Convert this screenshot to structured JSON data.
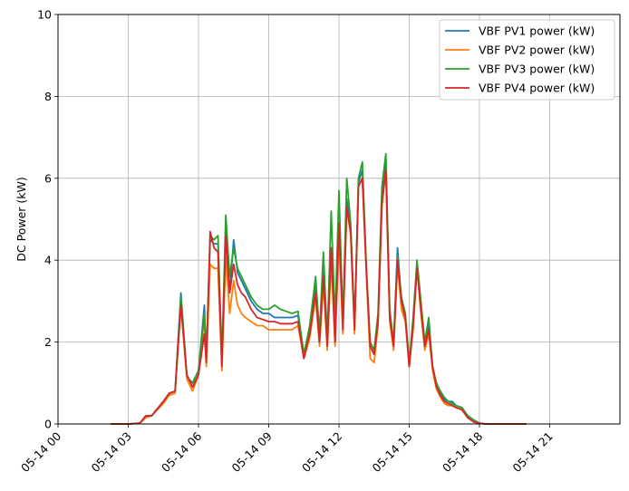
{
  "chart_data": {
    "type": "line",
    "ylabel": "DC Power (kW)",
    "xlabel": "",
    "ylim": [
      0,
      10
    ],
    "yticks": [
      0,
      2,
      4,
      6,
      8,
      10
    ],
    "xlim": [
      "05-14 00:00",
      "05-14 24:00"
    ],
    "xticks": [
      "05-14 00",
      "05-14 03",
      "05-14 06",
      "05-14 09",
      "05-14 12",
      "05-14 15",
      "05-14 18",
      "05-14 21"
    ],
    "grid": true,
    "legend_position": "top-right",
    "x": [
      "05-14 02:15",
      "05-14 03:00",
      "05-14 03:30",
      "05-14 03:45",
      "05-14 04:00",
      "05-14 04:30",
      "05-14 04:45",
      "05-14 05:00",
      "05-14 05:15",
      "05-14 05:30",
      "05-14 05:35",
      "05-14 05:45",
      "05-14 06:00",
      "05-14 06:15",
      "05-14 06:20",
      "05-14 06:30",
      "05-14 06:40",
      "05-14 06:50",
      "05-14 07:00",
      "05-14 07:10",
      "05-14 07:20",
      "05-14 07:30",
      "05-14 07:40",
      "05-14 07:50",
      "05-14 08:00",
      "05-14 08:15",
      "05-14 08:30",
      "05-14 08:45",
      "05-14 09:00",
      "05-14 09:15",
      "05-14 09:30",
      "05-14 09:45",
      "05-14 10:00",
      "05-14 10:15",
      "05-14 10:30",
      "05-14 10:45",
      "05-14 11:00",
      "05-14 11:10",
      "05-14 11:20",
      "05-14 11:30",
      "05-14 11:40",
      "05-14 11:50",
      "05-14 12:00",
      "05-14 12:10",
      "05-14 12:20",
      "05-14 12:30",
      "05-14 12:40",
      "05-14 12:50",
      "05-14 13:00",
      "05-14 13:10",
      "05-14 13:20",
      "05-14 13:30",
      "05-14 13:40",
      "05-14 13:50",
      "05-14 14:00",
      "05-14 14:10",
      "05-14 14:20",
      "05-14 14:30",
      "05-14 14:40",
      "05-14 14:50",
      "05-14 15:00",
      "05-14 15:10",
      "05-14 15:20",
      "05-14 15:30",
      "05-14 15:40",
      "05-14 15:50",
      "05-14 16:00",
      "05-14 16:10",
      "05-14 16:20",
      "05-14 16:30",
      "05-14 16:40",
      "05-14 16:50",
      "05-14 17:00",
      "05-14 17:15",
      "05-14 17:30",
      "05-14 17:45",
      "05-14 18:00",
      "05-14 18:15",
      "05-14 18:30",
      "05-14 18:45",
      "05-14 19:00",
      "05-14 19:15",
      "05-14 19:30",
      "05-14 20:00"
    ],
    "series": [
      {
        "name": "VBF PV1 power (kW)",
        "color": "#1f77b4",
        "values": [
          0,
          0,
          0.02,
          0.2,
          0.2,
          0.55,
          0.75,
          0.8,
          3.2,
          1.2,
          1.1,
          1.0,
          1.3,
          2.9,
          1.5,
          4.5,
          4.4,
          4.4,
          1.5,
          4.7,
          3.2,
          4.5,
          3.7,
          3.5,
          3.3,
          3.0,
          2.8,
          2.7,
          2.7,
          2.6,
          2.6,
          2.6,
          2.6,
          2.65,
          1.7,
          2.3,
          3.4,
          2.1,
          3.7,
          2.0,
          4.3,
          2.0,
          4.8,
          2.4,
          5.5,
          4.8,
          2.4,
          5.9,
          6.2,
          3.8,
          1.9,
          1.7,
          2.5,
          5.5,
          6.5,
          2.6,
          2.0,
          4.3,
          3.0,
          2.6,
          1.4,
          2.5,
          3.9,
          2.9,
          1.9,
          2.4,
          1.4,
          0.9,
          0.75,
          0.6,
          0.55,
          0.55,
          0.45,
          0.4,
          0.2,
          0.1,
          0.02,
          0,
          0,
          0,
          0,
          0,
          0,
          0
        ]
      },
      {
        "name": "VBF PV2 power (kW)",
        "color": "#ff7f0e",
        "values": [
          0,
          0,
          0.02,
          0.15,
          0.2,
          0.5,
          0.7,
          0.75,
          2.9,
          1.1,
          1.0,
          0.8,
          1.2,
          2.6,
          1.4,
          3.9,
          3.8,
          3.8,
          1.3,
          4.1,
          2.7,
          3.5,
          2.9,
          2.7,
          2.6,
          2.5,
          2.4,
          2.4,
          2.3,
          2.3,
          2.3,
          2.3,
          2.3,
          2.4,
          1.6,
          2.1,
          3.1,
          1.9,
          3.4,
          1.8,
          4.0,
          1.9,
          4.6,
          2.2,
          5.3,
          4.6,
          2.2,
          5.8,
          6.0,
          3.7,
          1.6,
          1.5,
          2.4,
          5.3,
          6.2,
          2.5,
          1.8,
          3.9,
          2.8,
          2.5,
          1.4,
          2.3,
          3.8,
          2.7,
          1.8,
          2.2,
          1.3,
          0.85,
          0.65,
          0.5,
          0.45,
          0.45,
          0.4,
          0.35,
          0.15,
          0.05,
          0.02,
          0,
          0,
          0,
          0,
          0,
          0,
          0
        ]
      },
      {
        "name": "VBF PV3 power (kW)",
        "color": "#2ca02c",
        "values": [
          0,
          0,
          0.02,
          0.2,
          0.2,
          0.55,
          0.75,
          0.8,
          3.1,
          1.2,
          1.1,
          1.0,
          1.3,
          2.7,
          1.6,
          4.6,
          4.5,
          4.6,
          1.6,
          5.1,
          3.6,
          4.3,
          3.8,
          3.6,
          3.4,
          3.1,
          2.9,
          2.8,
          2.8,
          2.9,
          2.8,
          2.75,
          2.7,
          2.75,
          1.7,
          2.4,
          3.6,
          2.2,
          4.2,
          2.1,
          5.2,
          2.5,
          5.7,
          2.5,
          6.0,
          4.9,
          2.4,
          6.0,
          6.4,
          3.9,
          2.0,
          1.8,
          2.7,
          5.8,
          6.6,
          2.8,
          2.0,
          4.1,
          3.1,
          2.7,
          1.5,
          2.6,
          4.0,
          3.0,
          2.0,
          2.6,
          1.4,
          1.0,
          0.8,
          0.65,
          0.55,
          0.5,
          0.45,
          0.4,
          0.2,
          0.1,
          0.02,
          0,
          0,
          0,
          0,
          0,
          0,
          0
        ]
      },
      {
        "name": "VBF PV4 power (kW)",
        "color": "#d62728",
        "values": [
          0,
          0,
          0.02,
          0.2,
          0.2,
          0.55,
          0.75,
          0.8,
          2.9,
          1.2,
          1.1,
          0.9,
          1.2,
          2.2,
          1.5,
          4.7,
          4.3,
          4.2,
          1.4,
          4.6,
          3.2,
          3.9,
          3.4,
          3.2,
          3.1,
          2.8,
          2.6,
          2.55,
          2.5,
          2.5,
          2.45,
          2.45,
          2.45,
          2.5,
          1.6,
          2.2,
          3.2,
          2.0,
          3.6,
          1.9,
          4.3,
          2.0,
          4.9,
          2.3,
          5.3,
          4.7,
          2.3,
          5.8,
          6.0,
          3.8,
          1.9,
          1.7,
          2.5,
          5.4,
          6.2,
          2.6,
          1.9,
          4.0,
          3.0,
          2.6,
          1.4,
          2.4,
          3.8,
          2.8,
          1.9,
          2.3,
          1.4,
          0.9,
          0.7,
          0.55,
          0.5,
          0.45,
          0.4,
          0.35,
          0.15,
          0.05,
          0.02,
          0,
          0,
          0,
          0,
          0,
          0,
          0
        ]
      }
    ]
  }
}
